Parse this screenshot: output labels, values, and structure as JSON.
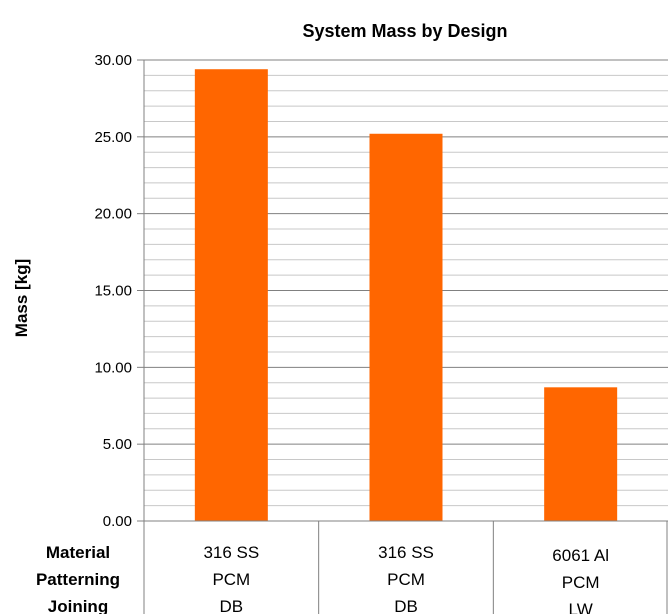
{
  "chart_data": {
    "type": "bar",
    "title": "System Mass by Design",
    "xlabel": "",
    "ylabel": "Mass [kg]",
    "ylim": [
      0,
      30
    ],
    "y_major_ticks": [
      "0.00",
      "5.00",
      "10.00",
      "15.00",
      "20.00",
      "25.00",
      "30.00"
    ],
    "y_minor_step": 1,
    "grid": true,
    "legend": "none",
    "bar_color": "#ff6600",
    "row_headers": [
      "Material",
      "Patterning",
      "Joining"
    ],
    "categories": [
      {
        "lines": [
          "316 SS",
          "PCM",
          "DB"
        ]
      },
      {
        "lines": [
          "316 SS",
          "PCM",
          "DB"
        ]
      },
      {
        "lines": [
          "6061 Al",
          "PCM",
          "LW"
        ]
      }
    ],
    "values": [
      29.4,
      25.2,
      8.7
    ]
  }
}
